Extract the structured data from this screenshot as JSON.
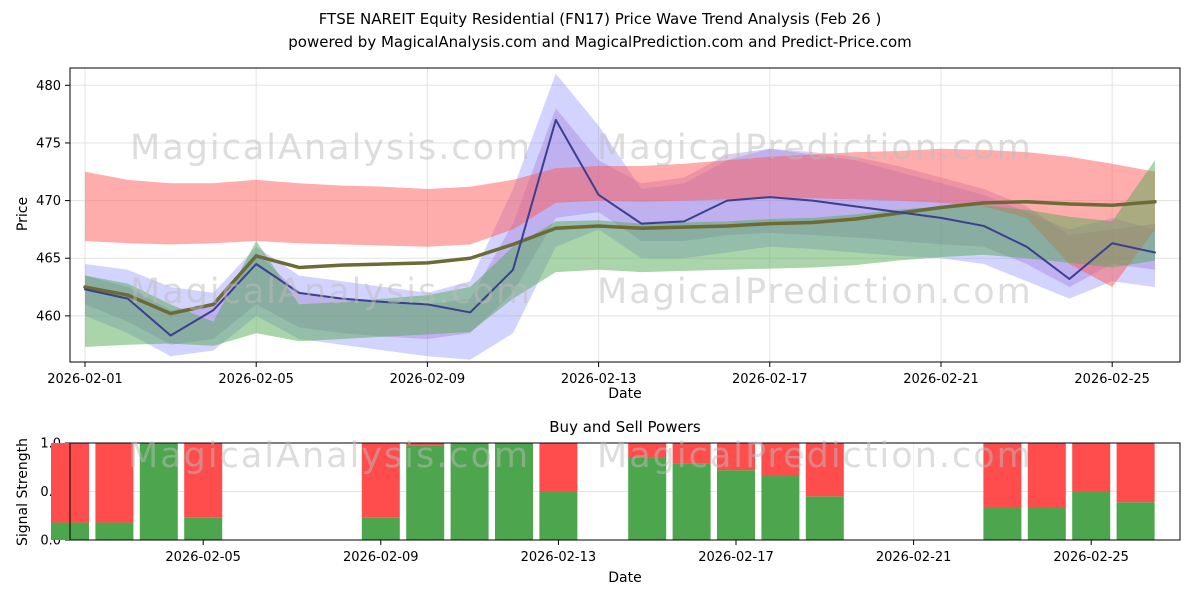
{
  "watermarks": {
    "analysis": "MagicalAnalysis.com",
    "prediction": "MagicalPrediction.com"
  },
  "chart_data": [
    {
      "type": "line",
      "title": "FTSE NAREIT Equity Residential (FN17) Price Wave Trend Analysis (Feb 26 )",
      "subtitle": "powered by MagicalAnalysis.com and MagicalPrediction.com and Predict-Price.com",
      "xlabel": "Date",
      "ylabel": "Price",
      "ylim": [
        456,
        481.5
      ],
      "grid": true,
      "ytick_values": [
        460,
        465,
        470,
        475,
        480
      ],
      "ytick_labels": [
        "460",
        "465",
        "470",
        "475",
        "480"
      ],
      "xtick_days": [
        0,
        4,
        8,
        12,
        16,
        20,
        24
      ],
      "xtick_labels": [
        "2026-02-01",
        "2026-02-05",
        "2026-02-09",
        "2026-02-13",
        "2026-02-17",
        "2026-02-21",
        "2026-02-25"
      ],
      "x_dates": [
        "2026-02-01",
        "2026-02-02",
        "2026-02-03",
        "2026-02-04",
        "2026-02-05",
        "2026-02-06",
        "2026-02-07",
        "2026-02-08",
        "2026-02-09",
        "2026-02-10",
        "2026-02-11",
        "2026-02-12",
        "2026-02-13",
        "2026-02-14",
        "2026-02-15",
        "2026-02-16",
        "2026-02-17",
        "2026-02-18",
        "2026-02-19",
        "2026-02-20",
        "2026-02-21",
        "2026-02-22",
        "2026-02-23",
        "2026-02-24",
        "2026-02-25",
        "2026-02-26"
      ],
      "bands": [
        {
          "name": "blue-wave-band",
          "color": "#8080ff",
          "opacity": 0.35,
          "upper": [
            464.5,
            464.0,
            462.5,
            462.0,
            466.0,
            463.5,
            463.0,
            462.5,
            462.0,
            463.0,
            471.0,
            481.0,
            476.5,
            471.0,
            471.5,
            473.5,
            474.5,
            474.0,
            473.5,
            472.5,
            471.5,
            470.5,
            469.0,
            467.5,
            468.5,
            467.5
          ],
          "lower": [
            460.0,
            458.5,
            456.5,
            457.0,
            460.0,
            458.0,
            457.5,
            457.0,
            456.5,
            456.2,
            458.5,
            466.0,
            467.5,
            465.0,
            465.0,
            465.5,
            466.0,
            465.8,
            465.5,
            465.2,
            465.0,
            464.5,
            463.0,
            461.5,
            463.0,
            462.5
          ]
        },
        {
          "name": "purple-wave-band",
          "color": "#9b6fd0",
          "opacity": 0.35,
          "upper": [
            463.5,
            462.5,
            460.5,
            461.0,
            465.5,
            462.0,
            461.5,
            461.2,
            461.0,
            461.5,
            468.0,
            478.0,
            473.5,
            471.5,
            472.0,
            474.0,
            474.5,
            474.2,
            473.8,
            473.0,
            472.0,
            471.0,
            469.5,
            467.0,
            467.5,
            468.0
          ],
          "lower": [
            461.0,
            459.5,
            457.5,
            458.0,
            461.0,
            459.0,
            458.5,
            458.2,
            458.0,
            458.5,
            462.0,
            468.5,
            469.0,
            466.5,
            466.5,
            467.0,
            467.2,
            467.0,
            466.8,
            466.5,
            466.2,
            466.0,
            464.5,
            462.5,
            464.5,
            464.0
          ]
        },
        {
          "name": "red-wave-band",
          "color": "#ff5a5a",
          "opacity": 0.5,
          "upper": [
            472.5,
            471.8,
            471.5,
            471.5,
            471.8,
            471.5,
            471.3,
            471.2,
            471.0,
            471.2,
            471.8,
            472.8,
            473.0,
            473.0,
            473.2,
            473.5,
            473.8,
            474.0,
            474.2,
            474.3,
            474.5,
            474.4,
            474.2,
            473.8,
            473.2,
            472.5
          ],
          "lower": [
            466.5,
            466.3,
            466.2,
            466.3,
            466.5,
            466.3,
            466.2,
            466.1,
            466.0,
            466.2,
            467.5,
            469.8,
            470.0,
            469.9,
            470.0,
            470.1,
            470.2,
            470.2,
            470.1,
            470.0,
            469.8,
            469.5,
            468.5,
            464.5,
            462.5,
            467.5
          ]
        },
        {
          "name": "green-wave-band",
          "color": "#55aa55",
          "opacity": 0.5,
          "upper": [
            463.5,
            462.8,
            461.0,
            459.5,
            466.5,
            461.0,
            461.2,
            461.5,
            461.8,
            462.5,
            466.0,
            468.2,
            468.3,
            468.0,
            468.1,
            468.2,
            468.4,
            468.5,
            468.8,
            469.2,
            469.5,
            469.6,
            469.2,
            468.6,
            468.2,
            473.5
          ],
          "lower": [
            457.3,
            457.5,
            457.6,
            457.4,
            458.5,
            457.8,
            458.0,
            458.2,
            458.4,
            458.6,
            461.5,
            463.8,
            464.0,
            463.8,
            463.9,
            464.0,
            464.1,
            464.2,
            464.4,
            464.8,
            465.1,
            465.3,
            465.0,
            464.6,
            464.2,
            464.8
          ]
        }
      ],
      "lines": [
        {
          "name": "trend-center-line",
          "color": "#6b6b35",
          "width": 3.5,
          "values": [
            462.5,
            461.8,
            460.2,
            461.0,
            465.2,
            464.2,
            464.4,
            464.5,
            464.6,
            465.0,
            466.2,
            467.6,
            467.8,
            467.6,
            467.7,
            467.8,
            468.0,
            468.1,
            468.4,
            468.9,
            469.4,
            469.8,
            469.9,
            469.7,
            469.6,
            469.9
          ]
        },
        {
          "name": "wave-center-line",
          "color": "#3a3f8f",
          "width": 2,
          "values": [
            462.3,
            461.5,
            458.3,
            460.5,
            464.5,
            462.0,
            461.5,
            461.2,
            461.0,
            460.3,
            464.0,
            477.0,
            470.5,
            468.0,
            468.2,
            470.0,
            470.3,
            470.0,
            469.5,
            469.0,
            468.5,
            467.8,
            466.0,
            463.2,
            466.3,
            465.5
          ]
        }
      ]
    },
    {
      "type": "bar",
      "stacked": true,
      "title": "Buy and Sell Powers",
      "xlabel": "Date",
      "ylabel": "Signal Strength",
      "ylim": [
        0,
        1
      ],
      "grid": true,
      "ytick_values": [
        0,
        0.5,
        1
      ],
      "ytick_labels": [
        "0.0",
        "0.5",
        "1.0"
      ],
      "xtick_labels": [
        "2026-02-05",
        "2026-02-09",
        "2026-02-13",
        "2026-02-17",
        "2026-02-21",
        "2026-02-25"
      ],
      "categories": [
        "2026-02-02",
        "2026-02-03",
        "2026-02-04",
        "2026-02-05",
        "2026-02-09",
        "2026-02-10",
        "2026-02-11",
        "2026-02-12",
        "2026-02-13",
        "2026-02-15",
        "2026-02-16",
        "2026-02-17",
        "2026-02-18",
        "2026-02-19",
        "2026-02-23",
        "2026-02-24",
        "2026-02-25",
        "2026-02-26"
      ],
      "series": [
        {
          "name": "Buy",
          "color": "#4da64d",
          "values": [
            0.18,
            0.18,
            1.0,
            0.23,
            0.23,
            0.97,
            1.0,
            1.0,
            0.5,
            0.85,
            0.79,
            0.72,
            0.67,
            0.45,
            0.34,
            0.34,
            0.5,
            0.39
          ]
        },
        {
          "name": "Sell",
          "color": "#ff4d4d",
          "values": [
            0.82,
            0.82,
            0.0,
            0.77,
            0.77,
            0.03,
            0.0,
            0.0,
            0.5,
            0.15,
            0.21,
            0.28,
            0.33,
            0.55,
            0.66,
            0.66,
            0.5,
            0.61
          ]
        }
      ]
    }
  ]
}
